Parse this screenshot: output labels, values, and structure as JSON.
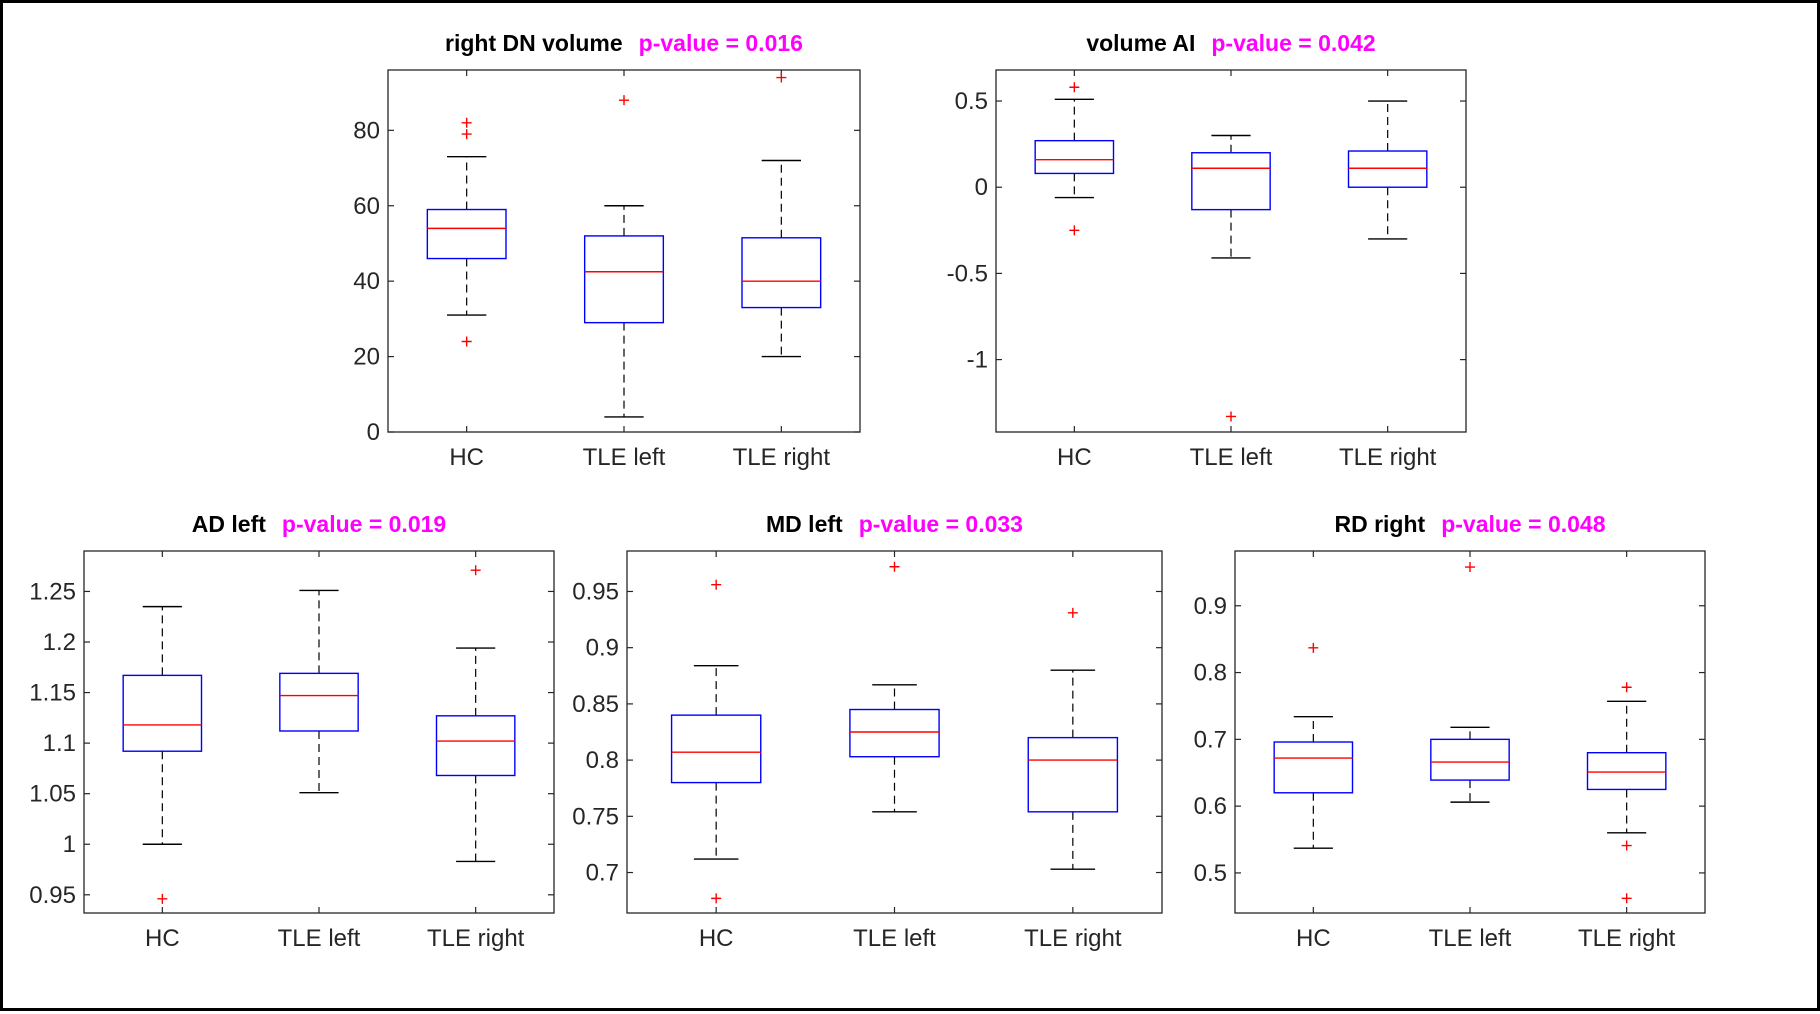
{
  "colors": {
    "box": "#0000ff",
    "median": "#ff0000",
    "whisker": "#000000",
    "outlier": "#ff0000",
    "pvalue": "#ff00ff",
    "axis": "#262626"
  },
  "chart_data": [
    {
      "type": "box",
      "title": "right DN volume",
      "pvalue": "p-value = 0.016",
      "categories": [
        "HC",
        "TLE left",
        "TLE right"
      ],
      "ylim": [
        0,
        96
      ],
      "yticks": [
        0,
        20,
        40,
        60,
        80
      ],
      "ytick_labels": [
        "0",
        "20",
        "40",
        "60",
        "80"
      ],
      "boxes": [
        {
          "low": 31,
          "q1": 46,
          "median": 54,
          "q3": 59,
          "high": 73,
          "outliers": [
            82,
            79,
            24
          ]
        },
        {
          "low": 4,
          "q1": 29,
          "median": 42.5,
          "q3": 52,
          "high": 60,
          "outliers": [
            88
          ]
        },
        {
          "low": 20,
          "q1": 33,
          "median": 40,
          "q3": 51.5,
          "high": 72,
          "outliers": [
            94
          ]
        }
      ]
    },
    {
      "type": "box",
      "title": "volume AI",
      "pvalue": "p-value = 0.042",
      "categories": [
        "HC",
        "TLE left",
        "TLE right"
      ],
      "ylim": [
        -1.42,
        0.68
      ],
      "yticks": [
        -1,
        -0.5,
        0,
        0.5
      ],
      "ytick_labels": [
        "-1",
        "-0.5",
        "0",
        "0.5"
      ],
      "boxes": [
        {
          "low": -0.06,
          "q1": 0.08,
          "median": 0.16,
          "q3": 0.27,
          "high": 0.51,
          "outliers": [
            0.58,
            -0.25
          ]
        },
        {
          "low": -0.41,
          "q1": -0.13,
          "median": 0.11,
          "q3": 0.2,
          "high": 0.3,
          "outliers": [
            -1.33
          ]
        },
        {
          "low": -0.3,
          "q1": 0,
          "median": 0.11,
          "q3": 0.21,
          "high": 0.5,
          "outliers": []
        }
      ]
    },
    {
      "type": "box",
      "title": "AD left",
      "pvalue": "p-value = 0.019",
      "categories": [
        "HC",
        "TLE left",
        "TLE right"
      ],
      "ylim": [
        0.932,
        1.29
      ],
      "yticks": [
        0.95,
        1,
        1.05,
        1.1,
        1.15,
        1.2,
        1.25
      ],
      "ytick_labels": [
        "0.95",
        "1",
        "1.05",
        "1.1",
        "1.15",
        "1.2",
        "1.25"
      ],
      "boxes": [
        {
          "low": 1.0,
          "q1": 1.092,
          "median": 1.118,
          "q3": 1.167,
          "high": 1.235,
          "outliers": [
            0.946
          ]
        },
        {
          "low": 1.051,
          "q1": 1.112,
          "median": 1.147,
          "q3": 1.169,
          "high": 1.251,
          "outliers": []
        },
        {
          "low": 0.983,
          "q1": 1.068,
          "median": 1.102,
          "q3": 1.127,
          "high": 1.194,
          "outliers": [
            1.271
          ]
        }
      ]
    },
    {
      "type": "box",
      "title": "MD left",
      "pvalue": "p-value = 0.033",
      "categories": [
        "HC",
        "TLE left",
        "TLE right"
      ],
      "ylim": [
        0.664,
        0.986
      ],
      "yticks": [
        0.7,
        0.75,
        0.8,
        0.85,
        0.9,
        0.95
      ],
      "ytick_labels": [
        "0.7",
        "0.75",
        "0.8",
        "0.85",
        "0.9",
        "0.95"
      ],
      "boxes": [
        {
          "low": 0.712,
          "q1": 0.78,
          "median": 0.807,
          "q3": 0.84,
          "high": 0.884,
          "outliers": [
            0.956,
            0.677
          ]
        },
        {
          "low": 0.754,
          "q1": 0.803,
          "median": 0.825,
          "q3": 0.845,
          "high": 0.867,
          "outliers": [
            0.972
          ]
        },
        {
          "low": 0.703,
          "q1": 0.754,
          "median": 0.8,
          "q3": 0.82,
          "high": 0.88,
          "outliers": [
            0.931
          ]
        }
      ]
    },
    {
      "type": "box",
      "title": "RD right",
      "pvalue": "p-value = 0.048",
      "categories": [
        "HC",
        "TLE left",
        "TLE right"
      ],
      "ylim": [
        0.44,
        0.982
      ],
      "yticks": [
        0.5,
        0.6,
        0.7,
        0.8,
        0.9
      ],
      "ytick_labels": [
        "0.5",
        "0.6",
        "0.7",
        "0.8",
        "0.9"
      ],
      "boxes": [
        {
          "low": 0.537,
          "q1": 0.62,
          "median": 0.672,
          "q3": 0.696,
          "high": 0.734,
          "outliers": [
            0.837
          ]
        },
        {
          "low": 0.606,
          "q1": 0.639,
          "median": 0.666,
          "q3": 0.7,
          "high": 0.718,
          "outliers": [
            0.958
          ]
        },
        {
          "low": 0.56,
          "q1": 0.625,
          "median": 0.651,
          "q3": 0.68,
          "high": 0.757,
          "outliers": [
            0.778,
            0.541,
            0.462
          ]
        }
      ]
    }
  ]
}
